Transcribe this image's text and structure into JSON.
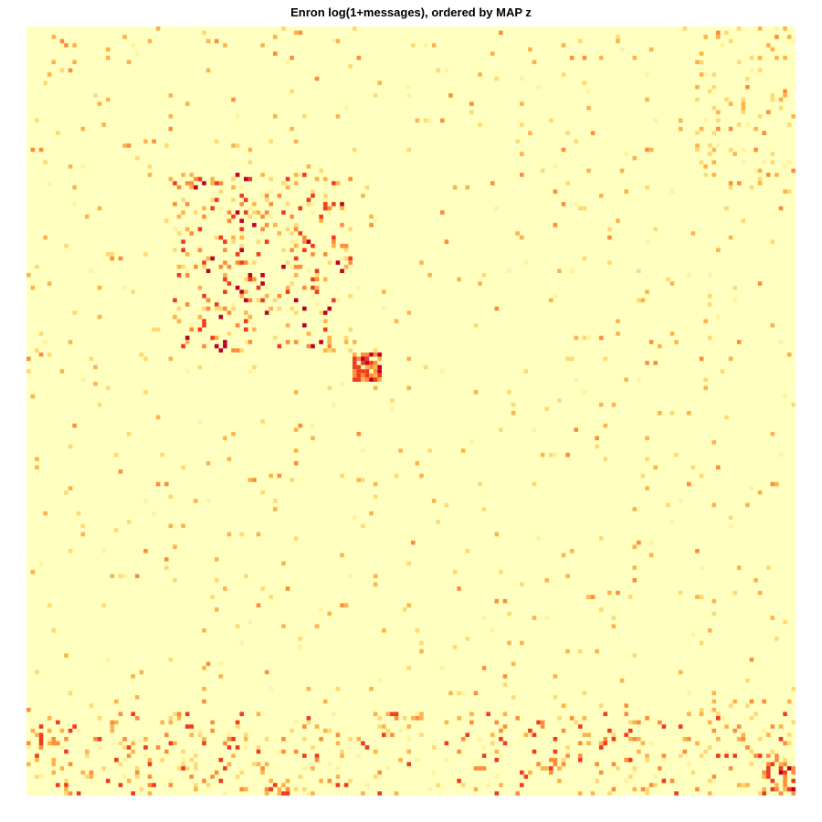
{
  "chart_data": {
    "type": "heatmap",
    "title": "Enron log(1+messages), ordered by MAP z",
    "xlabel": "",
    "ylabel": "",
    "grid": false,
    "legend": "none",
    "n_rows": 184,
    "n_cols": 184,
    "colormap": [
      "#ffffbf",
      "#fff3a0",
      "#fed976",
      "#feb24c",
      "#fd8d3c",
      "#f03b20",
      "#bd0026"
    ],
    "value_range": [
      0,
      6
    ],
    "structure": {
      "dense_block_rows": [
        35,
        78
      ],
      "dense_block_cols": [
        35,
        78
      ],
      "dense_small_block_rows": [
        78,
        85
      ],
      "dense_small_block_cols": [
        78,
        85
      ],
      "dense_bottom_rows": [
        164,
        184
      ]
    }
  }
}
